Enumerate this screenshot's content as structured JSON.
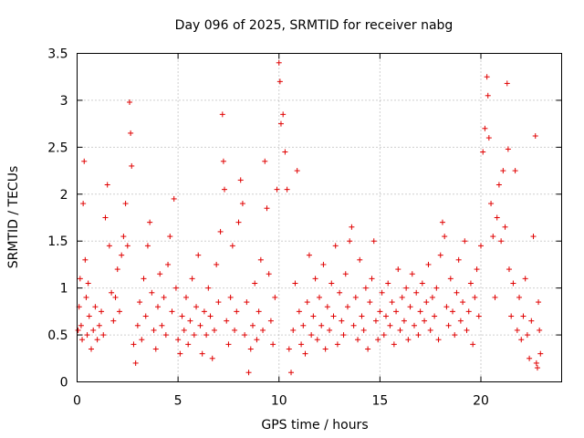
{
  "chart_data": {
    "type": "scatter",
    "title": "Day 096 of 2025, SRMTID for receiver nabg",
    "xlabel": "GPS time / hours",
    "ylabel": "SRMTID / TECUs",
    "xlim": [
      0,
      24
    ],
    "ylim": [
      0,
      3.5
    ],
    "xticks": [
      0,
      5,
      10,
      15,
      20
    ],
    "xtick_labels": [
      "0",
      "5",
      "10",
      "15",
      "20"
    ],
    "yticks": [
      0,
      0.5,
      1,
      1.5,
      2,
      2.5,
      3,
      3.5
    ],
    "ytick_labels": [
      "0",
      "0.5",
      "1",
      "1.5",
      "2",
      "2.5",
      "3",
      "3.5"
    ],
    "grid": true,
    "marker": "+",
    "color": "#e00000",
    "series": [
      {
        "name": "SRMTID",
        "points": [
          [
            0.05,
            0.55
          ],
          [
            0.1,
            0.8
          ],
          [
            0.15,
            1.1
          ],
          [
            0.2,
            0.6
          ],
          [
            0.25,
            0.45
          ],
          [
            0.3,
            1.9
          ],
          [
            0.35,
            2.35
          ],
          [
            0.4,
            1.3
          ],
          [
            0.45,
            0.9
          ],
          [
            0.5,
            0.5
          ],
          [
            0.55,
            1.05
          ],
          [
            0.6,
            0.7
          ],
          [
            0.7,
            0.35
          ],
          [
            0.8,
            0.55
          ],
          [
            0.9,
            0.8
          ],
          [
            1.0,
            0.45
          ],
          [
            1.1,
            0.6
          ],
          [
            1.2,
            0.75
          ],
          [
            1.3,
            0.5
          ],
          [
            1.4,
            1.75
          ],
          [
            1.5,
            2.1
          ],
          [
            1.6,
            1.45
          ],
          [
            1.7,
            0.95
          ],
          [
            1.8,
            0.65
          ],
          [
            1.9,
            0.9
          ],
          [
            2.0,
            1.2
          ],
          [
            2.1,
            0.75
          ],
          [
            2.2,
            1.35
          ],
          [
            2.3,
            1.55
          ],
          [
            2.4,
            1.9
          ],
          [
            2.5,
            1.45
          ],
          [
            2.6,
            2.98
          ],
          [
            2.65,
            2.65
          ],
          [
            2.7,
            2.3
          ],
          [
            2.8,
            0.4
          ],
          [
            2.9,
            0.2
          ],
          [
            3.0,
            0.6
          ],
          [
            3.1,
            0.85
          ],
          [
            3.2,
            0.45
          ],
          [
            3.3,
            1.1
          ],
          [
            3.4,
            0.7
          ],
          [
            3.5,
            1.45
          ],
          [
            3.6,
            1.7
          ],
          [
            3.7,
            0.95
          ],
          [
            3.8,
            0.55
          ],
          [
            3.9,
            0.35
          ],
          [
            4.0,
            0.8
          ],
          [
            4.1,
            1.15
          ],
          [
            4.2,
            0.6
          ],
          [
            4.3,
            0.9
          ],
          [
            4.4,
            0.5
          ],
          [
            4.5,
            1.25
          ],
          [
            4.6,
            1.55
          ],
          [
            4.7,
            0.75
          ],
          [
            4.8,
            1.95
          ],
          [
            4.9,
            1.0
          ],
          [
            5.0,
            0.45
          ],
          [
            5.1,
            0.3
          ],
          [
            5.2,
            0.7
          ],
          [
            5.3,
            0.55
          ],
          [
            5.4,
            0.9
          ],
          [
            5.5,
            0.4
          ],
          [
            5.6,
            0.65
          ],
          [
            5.7,
            1.1
          ],
          [
            5.8,
            0.5
          ],
          [
            5.9,
            0.8
          ],
          [
            6.0,
            1.35
          ],
          [
            6.1,
            0.6
          ],
          [
            6.2,
            0.3
          ],
          [
            6.3,
            0.75
          ],
          [
            6.4,
            0.5
          ],
          [
            6.5,
            1.0
          ],
          [
            6.6,
            0.7
          ],
          [
            6.7,
            0.25
          ],
          [
            6.8,
            0.55
          ],
          [
            6.9,
            1.25
          ],
          [
            7.0,
            0.85
          ],
          [
            7.1,
            1.6
          ],
          [
            7.2,
            2.85
          ],
          [
            7.25,
            2.35
          ],
          [
            7.3,
            2.05
          ],
          [
            7.4,
            0.65
          ],
          [
            7.5,
            0.4
          ],
          [
            7.6,
            0.9
          ],
          [
            7.7,
            1.45
          ],
          [
            7.8,
            0.55
          ],
          [
            7.9,
            0.75
          ],
          [
            8.0,
            1.7
          ],
          [
            8.1,
            2.15
          ],
          [
            8.2,
            1.9
          ],
          [
            8.3,
            0.5
          ],
          [
            8.4,
            0.85
          ],
          [
            8.5,
            0.1
          ],
          [
            8.6,
            0.35
          ],
          [
            8.7,
            0.6
          ],
          [
            8.8,
            1.05
          ],
          [
            8.9,
            0.45
          ],
          [
            9.0,
            0.75
          ],
          [
            9.1,
            1.3
          ],
          [
            9.2,
            0.55
          ],
          [
            9.3,
            2.35
          ],
          [
            9.4,
            1.85
          ],
          [
            9.5,
            1.15
          ],
          [
            9.6,
            0.65
          ],
          [
            9.7,
            0.4
          ],
          [
            9.8,
            0.9
          ],
          [
            9.9,
            2.05
          ],
          [
            10.0,
            3.4
          ],
          [
            10.05,
            3.2
          ],
          [
            10.1,
            2.75
          ],
          [
            10.2,
            2.85
          ],
          [
            10.3,
            2.45
          ],
          [
            10.4,
            2.05
          ],
          [
            10.5,
            0.35
          ],
          [
            10.6,
            0.1
          ],
          [
            10.7,
            0.55
          ],
          [
            10.8,
            1.05
          ],
          [
            10.9,
            2.25
          ],
          [
            11.0,
            0.75
          ],
          [
            11.1,
            0.4
          ],
          [
            11.2,
            0.6
          ],
          [
            11.3,
            0.3
          ],
          [
            11.4,
            0.85
          ],
          [
            11.5,
            1.35
          ],
          [
            11.6,
            0.5
          ],
          [
            11.7,
            0.7
          ],
          [
            11.8,
            1.1
          ],
          [
            11.9,
            0.45
          ],
          [
            12.0,
            0.9
          ],
          [
            12.1,
            0.6
          ],
          [
            12.2,
            1.25
          ],
          [
            12.3,
            0.35
          ],
          [
            12.4,
            0.8
          ],
          [
            12.5,
            0.55
          ],
          [
            12.6,
            1.05
          ],
          [
            12.7,
            0.7
          ],
          [
            12.8,
            1.45
          ],
          [
            12.9,
            0.4
          ],
          [
            13.0,
            0.95
          ],
          [
            13.1,
            0.65
          ],
          [
            13.2,
            0.5
          ],
          [
            13.3,
            1.15
          ],
          [
            13.4,
            0.8
          ],
          [
            13.5,
            1.5
          ],
          [
            13.6,
            1.65
          ],
          [
            13.7,
            0.6
          ],
          [
            13.8,
            0.9
          ],
          [
            13.9,
            0.45
          ],
          [
            14.0,
            1.3
          ],
          [
            14.1,
            0.7
          ],
          [
            14.2,
            0.55
          ],
          [
            14.3,
            1.0
          ],
          [
            14.4,
            0.35
          ],
          [
            14.5,
            0.85
          ],
          [
            14.6,
            1.1
          ],
          [
            14.7,
            1.5
          ],
          [
            14.8,
            0.65
          ],
          [
            14.9,
            0.45
          ],
          [
            15.0,
            0.75
          ],
          [
            15.1,
            0.95
          ],
          [
            15.2,
            0.5
          ],
          [
            15.3,
            0.7
          ],
          [
            15.4,
            1.05
          ],
          [
            15.5,
            0.6
          ],
          [
            15.6,
            0.85
          ],
          [
            15.7,
            0.4
          ],
          [
            15.8,
            0.75
          ],
          [
            15.9,
            1.2
          ],
          [
            16.0,
            0.55
          ],
          [
            16.1,
            0.9
          ],
          [
            16.2,
            0.65
          ],
          [
            16.3,
            1.0
          ],
          [
            16.4,
            0.45
          ],
          [
            16.5,
            0.8
          ],
          [
            16.6,
            1.15
          ],
          [
            16.7,
            0.6
          ],
          [
            16.8,
            0.95
          ],
          [
            16.9,
            0.5
          ],
          [
            17.0,
            0.75
          ],
          [
            17.1,
            1.05
          ],
          [
            17.2,
            0.65
          ],
          [
            17.3,
            0.85
          ],
          [
            17.4,
            1.25
          ],
          [
            17.5,
            0.55
          ],
          [
            17.6,
            0.9
          ],
          [
            17.7,
            0.7
          ],
          [
            17.8,
            1.0
          ],
          [
            17.9,
            0.45
          ],
          [
            18.0,
            1.35
          ],
          [
            18.1,
            1.7
          ],
          [
            18.2,
            1.55
          ],
          [
            18.3,
            0.8
          ],
          [
            18.4,
            0.6
          ],
          [
            18.5,
            1.1
          ],
          [
            18.6,
            0.75
          ],
          [
            18.7,
            0.5
          ],
          [
            18.8,
            0.95
          ],
          [
            18.9,
            1.3
          ],
          [
            19.0,
            0.65
          ],
          [
            19.1,
            0.85
          ],
          [
            19.2,
            1.5
          ],
          [
            19.3,
            0.55
          ],
          [
            19.4,
            0.75
          ],
          [
            19.5,
            1.05
          ],
          [
            19.6,
            0.4
          ],
          [
            19.7,
            0.9
          ],
          [
            19.8,
            1.2
          ],
          [
            19.9,
            0.7
          ],
          [
            20.0,
            1.45
          ],
          [
            20.1,
            2.45
          ],
          [
            20.2,
            2.7
          ],
          [
            20.3,
            3.25
          ],
          [
            20.35,
            3.05
          ],
          [
            20.4,
            2.6
          ],
          [
            20.5,
            1.9
          ],
          [
            20.6,
            1.55
          ],
          [
            20.7,
            0.9
          ],
          [
            20.8,
            1.75
          ],
          [
            20.9,
            2.1
          ],
          [
            21.0,
            1.5
          ],
          [
            21.1,
            2.25
          ],
          [
            21.2,
            1.65
          ],
          [
            21.3,
            3.18
          ],
          [
            21.35,
            2.48
          ],
          [
            21.4,
            1.2
          ],
          [
            21.5,
            0.7
          ],
          [
            21.6,
            1.05
          ],
          [
            21.7,
            2.25
          ],
          [
            21.8,
            0.55
          ],
          [
            21.9,
            0.9
          ],
          [
            22.0,
            0.45
          ],
          [
            22.1,
            0.7
          ],
          [
            22.2,
            1.1
          ],
          [
            22.3,
            0.5
          ],
          [
            22.4,
            0.25
          ],
          [
            22.5,
            0.65
          ],
          [
            22.6,
            1.55
          ],
          [
            22.7,
            2.62
          ],
          [
            22.75,
            0.2
          ],
          [
            22.8,
            0.15
          ],
          [
            22.85,
            0.85
          ],
          [
            22.9,
            0.55
          ],
          [
            22.95,
            0.3
          ]
        ]
      }
    ]
  }
}
